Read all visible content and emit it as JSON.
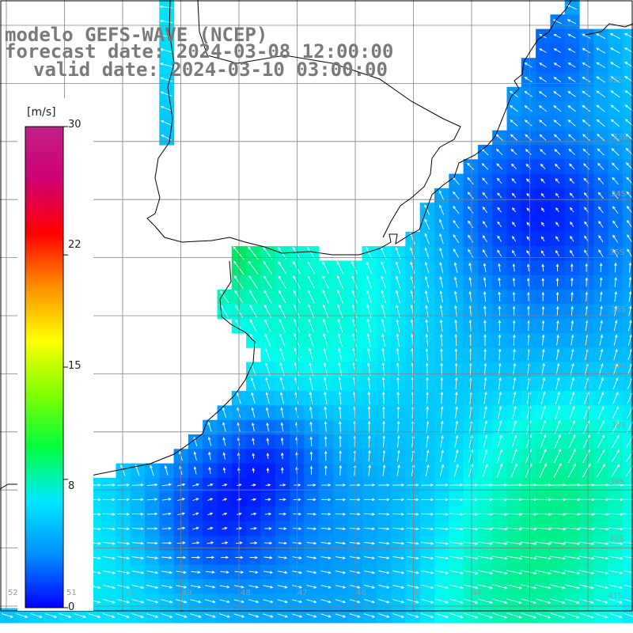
{
  "header": {
    "line1": "modelo GEFS-WAVE (NCEP)",
    "line2": "forecast date: 2024-03-08 12:00:00",
    "line3": "valid date: 2024-03-10 03:00:00"
  },
  "colorbar": {
    "units": "[m/s]",
    "ticks": [
      "30",
      "22",
      "15",
      "8",
      "0"
    ],
    "range": [
      0,
      30
    ],
    "colors": [
      "#0000ff",
      "#0090ff",
      "#00e8ff",
      "#00ff40",
      "#80ff00",
      "#ffff00",
      "#ff9000",
      "#ff0000",
      "#d00070",
      "#c0208a"
    ]
  },
  "lat_labels": [
    "32S",
    "33S",
    "34S",
    "35S",
    "36S",
    "37S",
    "38S",
    "39S",
    "40S",
    "41S"
  ],
  "bottom_labels": [
    "52",
    "51",
    "50",
    "49",
    "48",
    "47",
    "46",
    "45",
    "44"
  ],
  "colors": {
    "land": "#ffffff",
    "coastline": "#000000",
    "grid": "#808080",
    "arrow": "#ffffff",
    "title_text": "#7a7a7a"
  }
}
